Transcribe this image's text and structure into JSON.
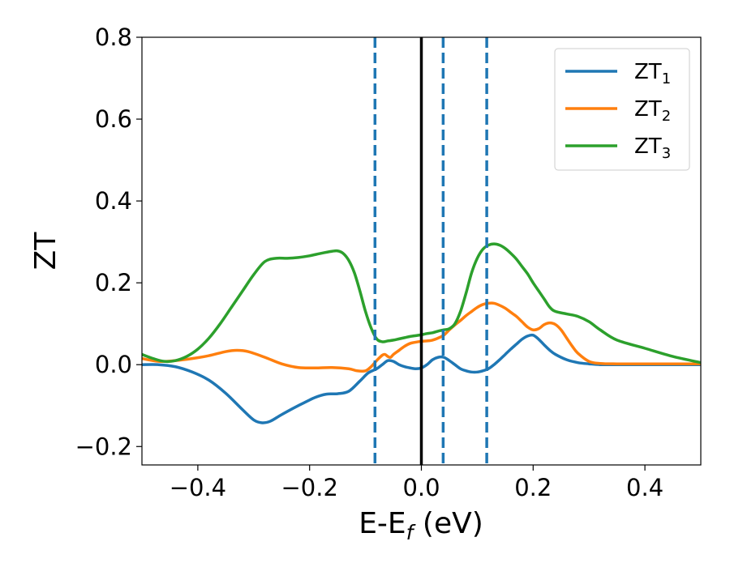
{
  "chart_data": {
    "type": "line",
    "ylabel": "ZT",
    "xlabel_main": "E-E",
    "xlabel_sub": "f",
    "xlabel_unit": " (eV)",
    "xlim": [
      -0.5,
      0.5
    ],
    "ylim": [
      -0.245,
      0.8
    ],
    "xticks": [
      -0.4,
      -0.2,
      0.0,
      0.2,
      0.4
    ],
    "xtick_labels": [
      "−0.4",
      "−0.2",
      "0.0",
      "0.2",
      "0.4"
    ],
    "yticks": [
      -0.2,
      0.0,
      0.2,
      0.4,
      0.6,
      0.8
    ],
    "ytick_labels": [
      "−0.2",
      "0.0",
      "0.2",
      "0.4",
      "0.6",
      "0.8"
    ],
    "grid": false,
    "legend_position": "top-right",
    "reference_lines": [
      {
        "x": 0.0,
        "style": "solid",
        "color": "#000000"
      },
      {
        "x": -0.083,
        "style": "dashed",
        "color": "#1f77b4"
      },
      {
        "x": 0.039,
        "style": "dashed",
        "color": "#1f77b4"
      },
      {
        "x": 0.117,
        "style": "dashed",
        "color": "#1f77b4"
      }
    ],
    "series": [
      {
        "name_main": "ZT",
        "name_sub": "1",
        "color": "#1f77b4",
        "x": [
          -0.5,
          -0.47,
          -0.44,
          -0.41,
          -0.38,
          -0.35,
          -0.32,
          -0.3,
          -0.285,
          -0.27,
          -0.25,
          -0.22,
          -0.19,
          -0.17,
          -0.15,
          -0.13,
          -0.11,
          -0.095,
          -0.08,
          -0.07,
          -0.06,
          -0.05,
          -0.04,
          -0.03,
          -0.02,
          -0.01,
          0.0,
          0.01,
          0.02,
          0.03,
          0.04,
          0.05,
          0.06,
          0.07,
          0.08,
          0.09,
          0.1,
          0.11,
          0.12,
          0.13,
          0.14,
          0.15,
          0.16,
          0.17,
          0.18,
          0.19,
          0.2,
          0.21,
          0.22,
          0.23,
          0.24,
          0.26,
          0.28,
          0.3,
          0.32,
          0.35,
          0.4,
          0.45,
          0.5
        ],
        "y": [
          0.0,
          0.0,
          -0.005,
          -0.018,
          -0.038,
          -0.07,
          -0.11,
          -0.135,
          -0.142,
          -0.138,
          -0.122,
          -0.1,
          -0.08,
          -0.072,
          -0.071,
          -0.065,
          -0.04,
          -0.02,
          -0.01,
          0.0,
          0.01,
          0.008,
          0.0,
          -0.005,
          -0.008,
          -0.01,
          -0.008,
          0.0,
          0.012,
          0.018,
          0.018,
          0.01,
          0.0,
          -0.01,
          -0.015,
          -0.018,
          -0.018,
          -0.015,
          -0.01,
          0.0,
          0.012,
          0.025,
          0.038,
          0.05,
          0.062,
          0.07,
          0.072,
          0.062,
          0.048,
          0.035,
          0.025,
          0.012,
          0.005,
          0.002,
          0.0,
          0.0,
          0.0,
          0.0,
          0.0
        ]
      },
      {
        "name_main": "ZT",
        "name_sub": "2",
        "color": "#ff7f0e",
        "x": [
          -0.5,
          -0.47,
          -0.44,
          -0.41,
          -0.38,
          -0.35,
          -0.33,
          -0.31,
          -0.28,
          -0.25,
          -0.22,
          -0.19,
          -0.16,
          -0.13,
          -0.115,
          -0.1,
          -0.09,
          -0.08,
          -0.07,
          -0.065,
          -0.06,
          -0.055,
          -0.05,
          -0.04,
          -0.03,
          -0.02,
          -0.01,
          0.0,
          0.01,
          0.02,
          0.03,
          0.04,
          0.05,
          0.06,
          0.07,
          0.08,
          0.09,
          0.1,
          0.11,
          0.12,
          0.13,
          0.14,
          0.15,
          0.16,
          0.17,
          0.18,
          0.19,
          0.2,
          0.21,
          0.22,
          0.23,
          0.24,
          0.25,
          0.26,
          0.27,
          0.28,
          0.3,
          0.32,
          0.35,
          0.4,
          0.45,
          0.5
        ],
        "y": [
          0.015,
          0.008,
          0.01,
          0.015,
          0.022,
          0.032,
          0.035,
          0.032,
          0.018,
          0.002,
          -0.007,
          -0.008,
          -0.007,
          -0.01,
          -0.015,
          -0.015,
          -0.005,
          0.01,
          0.023,
          0.025,
          0.02,
          0.018,
          0.025,
          0.035,
          0.045,
          0.052,
          0.055,
          0.057,
          0.058,
          0.06,
          0.065,
          0.072,
          0.085,
          0.097,
          0.108,
          0.12,
          0.13,
          0.14,
          0.147,
          0.15,
          0.15,
          0.145,
          0.138,
          0.128,
          0.118,
          0.105,
          0.092,
          0.085,
          0.088,
          0.098,
          0.102,
          0.098,
          0.085,
          0.065,
          0.045,
          0.028,
          0.008,
          0.003,
          0.002,
          0.002,
          0.002,
          0.002
        ]
      },
      {
        "name_main": "ZT",
        "name_sub": "3",
        "color": "#2ca02c",
        "x": [
          -0.5,
          -0.48,
          -0.46,
          -0.44,
          -0.42,
          -0.4,
          -0.38,
          -0.36,
          -0.34,
          -0.32,
          -0.3,
          -0.28,
          -0.26,
          -0.24,
          -0.22,
          -0.2,
          -0.18,
          -0.16,
          -0.15,
          -0.14,
          -0.13,
          -0.12,
          -0.11,
          -0.1,
          -0.09,
          -0.08,
          -0.07,
          -0.06,
          -0.05,
          -0.04,
          -0.03,
          -0.02,
          -0.01,
          0.0,
          0.01,
          0.02,
          0.03,
          0.04,
          0.05,
          0.06,
          0.07,
          0.08,
          0.09,
          0.1,
          0.11,
          0.12,
          0.13,
          0.14,
          0.15,
          0.16,
          0.17,
          0.18,
          0.19,
          0.2,
          0.21,
          0.22,
          0.23,
          0.24,
          0.26,
          0.28,
          0.3,
          0.32,
          0.35,
          0.4,
          0.45,
          0.5
        ],
        "y": [
          0.025,
          0.015,
          0.008,
          0.01,
          0.02,
          0.038,
          0.065,
          0.1,
          0.14,
          0.18,
          0.22,
          0.252,
          0.26,
          0.26,
          0.262,
          0.266,
          0.272,
          0.277,
          0.278,
          0.272,
          0.255,
          0.225,
          0.18,
          0.13,
          0.09,
          0.063,
          0.056,
          0.058,
          0.06,
          0.063,
          0.066,
          0.069,
          0.071,
          0.073,
          0.076,
          0.078,
          0.082,
          0.085,
          0.088,
          0.1,
          0.13,
          0.175,
          0.225,
          0.26,
          0.282,
          0.292,
          0.295,
          0.292,
          0.284,
          0.272,
          0.258,
          0.24,
          0.222,
          0.2,
          0.18,
          0.16,
          0.14,
          0.13,
          0.124,
          0.118,
          0.105,
          0.085,
          0.06,
          0.04,
          0.02,
          0.005
        ]
      }
    ]
  }
}
